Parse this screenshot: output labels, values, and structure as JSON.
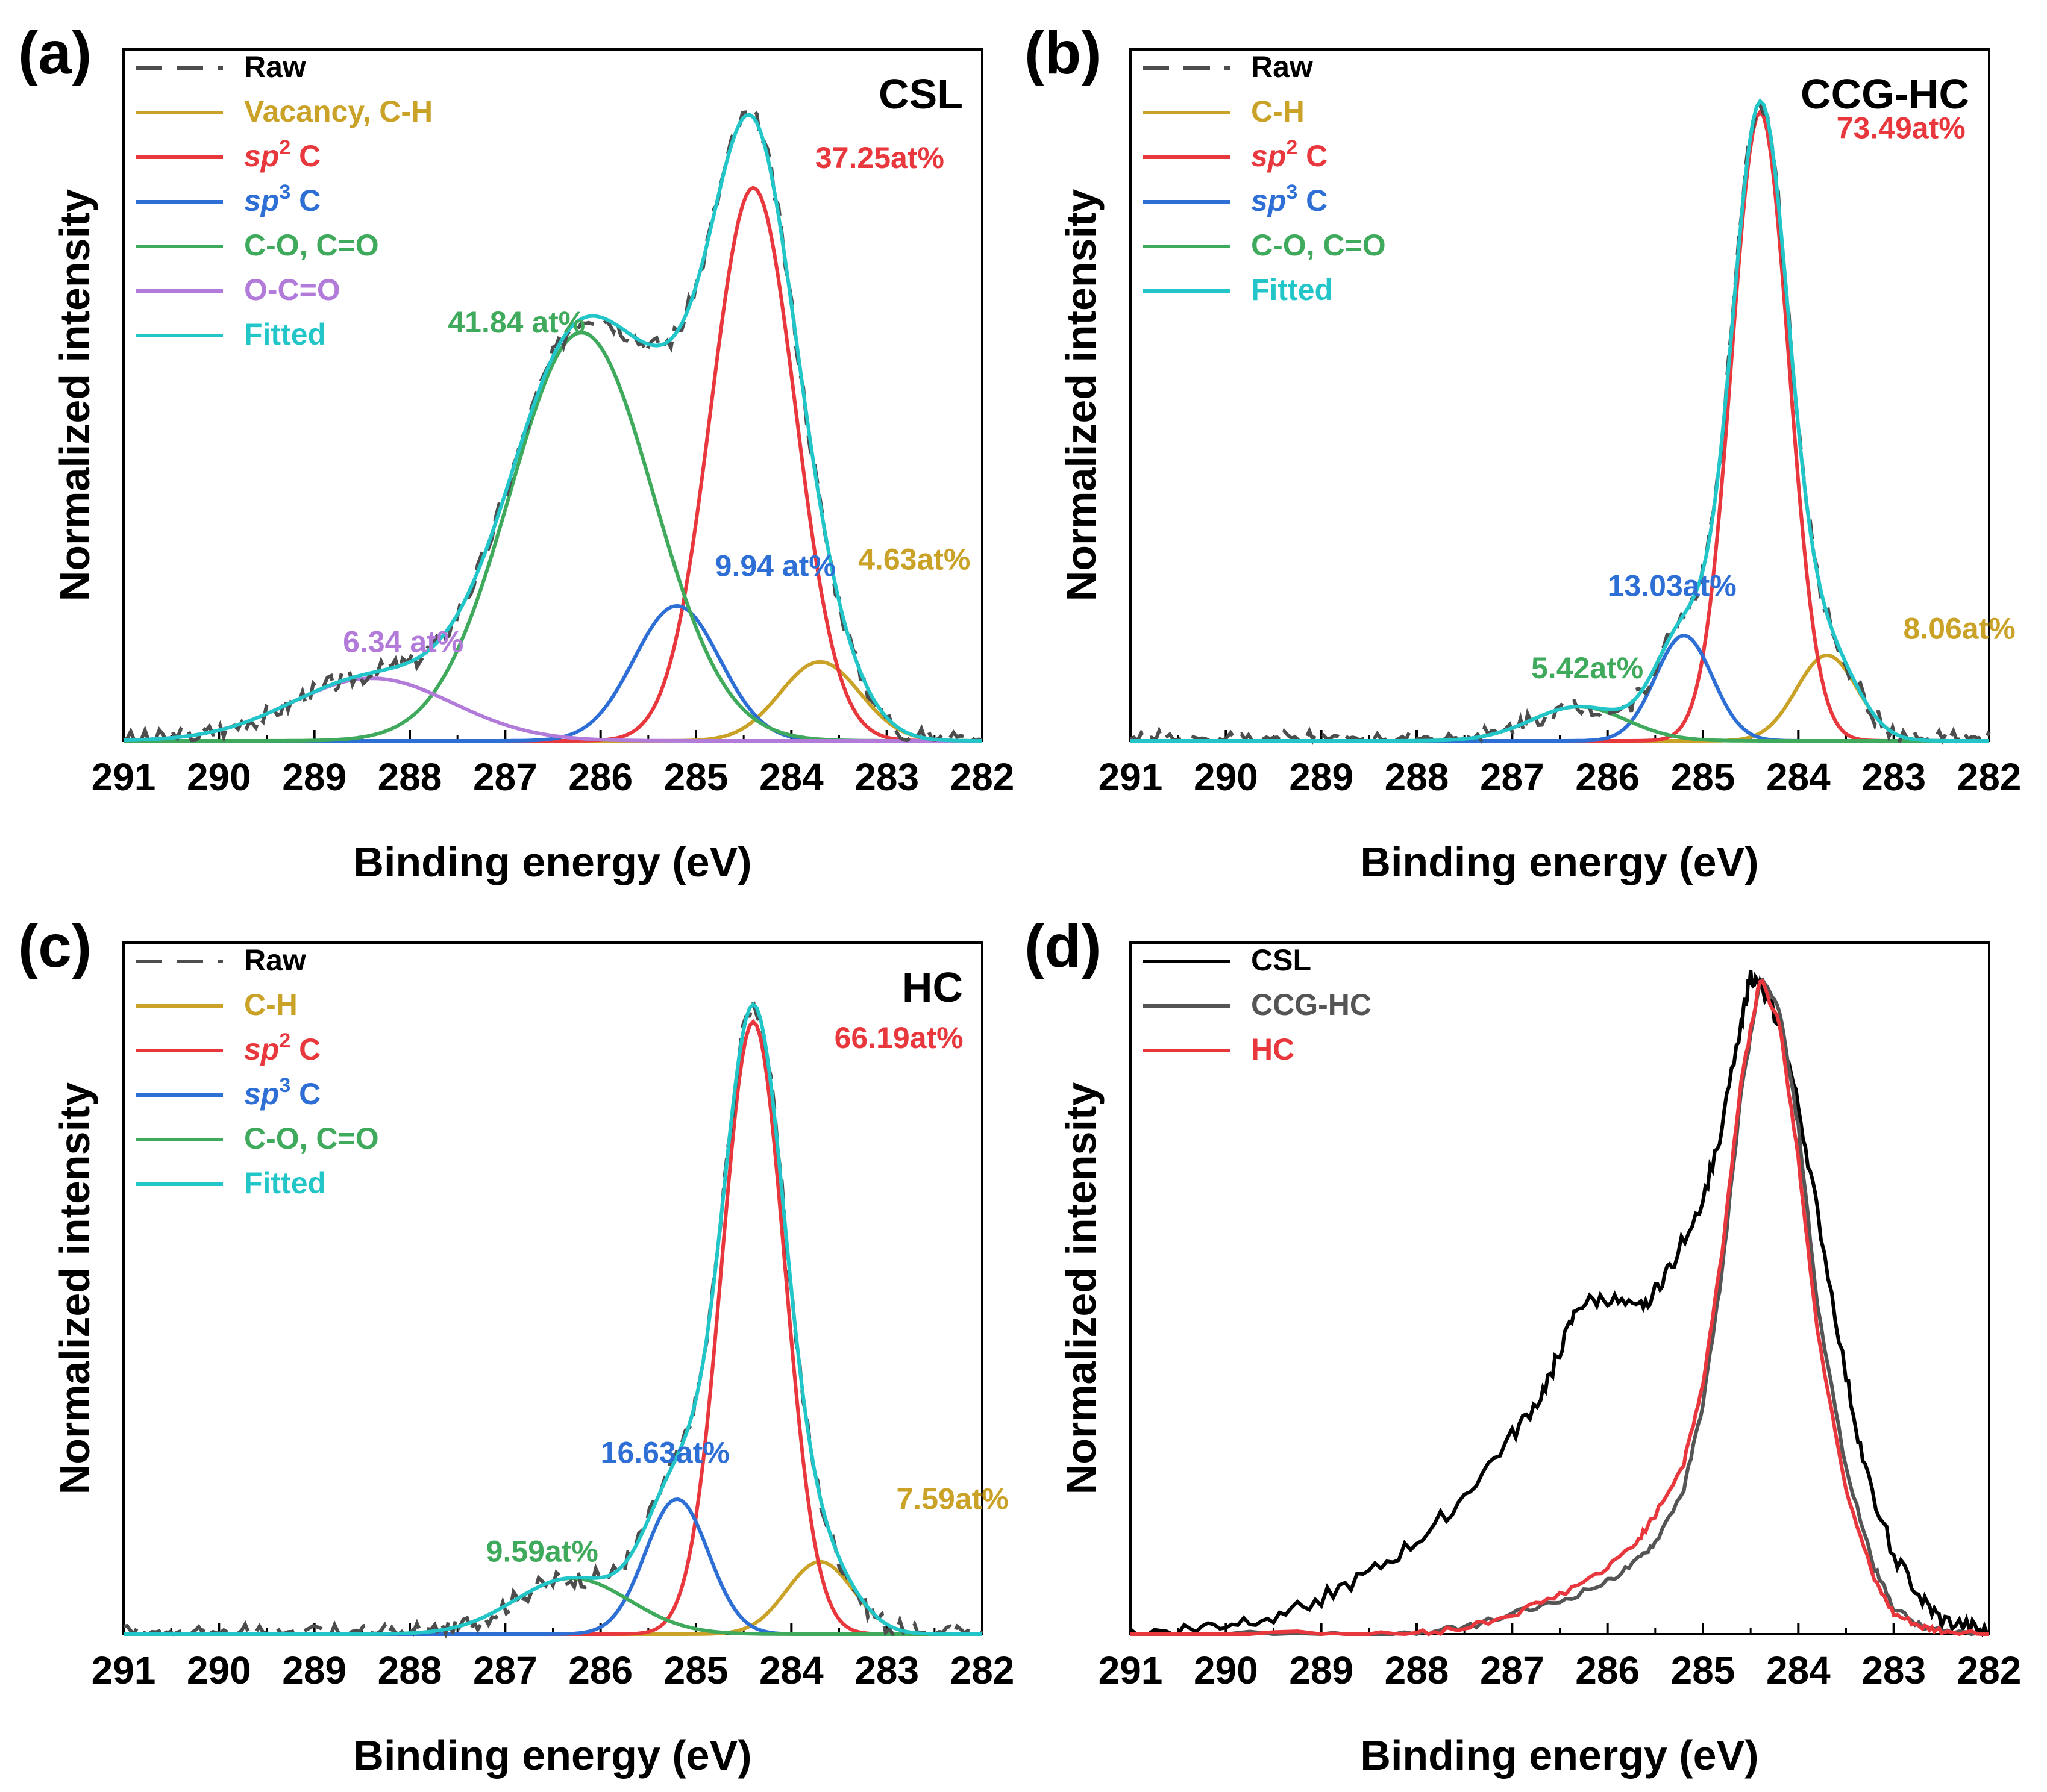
{
  "chart_data": [
    {
      "panel": "(a)",
      "title": "CSL",
      "type": "line",
      "xlabel": "Binding energy (eV)",
      "ylabel": "Normalized intensity",
      "xlim": [
        291,
        282
      ],
      "x_ticks": [
        "291",
        "290",
        "289",
        "288",
        "287",
        "286",
        "285",
        "284",
        "283",
        "282"
      ],
      "ylim": [
        0,
        1.05
      ],
      "legend": [
        {
          "label": "Raw",
          "color": "#4d4d4d",
          "dashed": true
        },
        {
          "label": "Vacancy, C-H",
          "color": "#c9a227"
        },
        {
          "label": "sp2 C",
          "prefix": "sp",
          "sup": "2",
          "suffix": " C",
          "color": "#e8383d"
        },
        {
          "label": "sp3 C",
          "prefix": "sp",
          "sup": "3",
          "suffix": " C",
          "color": "#2e6fd6"
        },
        {
          "label": "C-O, C=O",
          "color": "#3fa95c"
        },
        {
          "label": "O-C=O",
          "color": "#b27bd9"
        },
        {
          "label": "Fitted",
          "color": "#22c6c9"
        }
      ],
      "components": [
        {
          "name": "Vacancy, C-H",
          "center": 283.7,
          "height": 0.12,
          "sigma": 0.42,
          "color": "#c9a227"
        },
        {
          "name": "sp2 C",
          "center": 284.4,
          "height": 0.84,
          "sigma": 0.44,
          "color": "#e8383d"
        },
        {
          "name": "sp3 C",
          "center": 285.2,
          "height": 0.205,
          "sigma": 0.45,
          "color": "#2e6fd6"
        },
        {
          "name": "C-O, C=O",
          "center": 286.2,
          "height": 0.62,
          "sigma": 0.75,
          "color": "#3fa95c"
        },
        {
          "name": "O-C=O",
          "center": 288.4,
          "height": 0.095,
          "sigma": 0.85,
          "color": "#b27bd9"
        }
      ],
      "annotations": [
        {
          "text": "37.25at%",
          "color": "#e8383d",
          "x": 283.75,
          "y": 0.87
        },
        {
          "text": "41.84 at%",
          "color": "#3fa95c",
          "x": 287.6,
          "y": 0.62
        },
        {
          "text": "9.94 at%",
          "color": "#2e6fd6",
          "x": 284.8,
          "y": 0.25
        },
        {
          "text": "4.63at%",
          "color": "#c9a227",
          "x": 283.3,
          "y": 0.26
        },
        {
          "text": "6.34 at%",
          "color": "#b27bd9",
          "x": 288.7,
          "y": 0.135
        }
      ]
    },
    {
      "panel": "(b)",
      "title": "CCG-HC",
      "type": "line",
      "xlabel": "Binding energy (eV)",
      "ylabel": "Normalized intensity",
      "xlim": [
        291,
        282
      ],
      "x_ticks": [
        "291",
        "290",
        "289",
        "288",
        "287",
        "286",
        "285",
        "284",
        "283",
        "282"
      ],
      "ylim": [
        0,
        1.05
      ],
      "legend": [
        {
          "label": "Raw",
          "color": "#4d4d4d",
          "dashed": true
        },
        {
          "label": "C-H",
          "color": "#c9a227"
        },
        {
          "label": "sp2 C",
          "prefix": "sp",
          "sup": "2",
          "suffix": " C",
          "color": "#e8383d"
        },
        {
          "label": "sp3 C",
          "prefix": "sp",
          "sup": "3",
          "suffix": " C",
          "color": "#2e6fd6"
        },
        {
          "label": "C-O, C=O",
          "color": "#3fa95c"
        },
        {
          "label": "Fitted",
          "color": "#22c6c9"
        }
      ],
      "components": [
        {
          "name": "C-H",
          "center": 283.7,
          "height": 0.13,
          "sigma": 0.32,
          "color": "#c9a227"
        },
        {
          "name": "sp2 C",
          "center": 284.4,
          "height": 0.955,
          "sigma": 0.3,
          "color": "#e8383d"
        },
        {
          "name": "sp3 C",
          "center": 285.2,
          "height": 0.16,
          "sigma": 0.3,
          "color": "#2e6fd6"
        },
        {
          "name": "C-O, C=O",
          "center": 286.3,
          "height": 0.052,
          "sigma": 0.5,
          "color": "#3fa95c"
        }
      ],
      "annotations": [
        {
          "text": "73.49at%",
          "color": "#e8383d",
          "x": 283.6,
          "y": 0.915
        },
        {
          "text": "13.03at%",
          "color": "#2e6fd6",
          "x": 286.0,
          "y": 0.22
        },
        {
          "text": "5.42at%",
          "color": "#3fa95c",
          "x": 286.8,
          "y": 0.095
        },
        {
          "text": "8.06at%",
          "color": "#c9a227",
          "x": 282.9,
          "y": 0.155
        }
      ]
    },
    {
      "panel": "(c)",
      "title": "HC",
      "type": "line",
      "xlabel": "Binding energy (eV)",
      "ylabel": "Normalized intensity",
      "xlim": [
        291,
        282
      ],
      "x_ticks": [
        "291",
        "290",
        "289",
        "288",
        "287",
        "286",
        "285",
        "284",
        "283",
        "282"
      ],
      "ylim": [
        0,
        1.05
      ],
      "legend": [
        {
          "label": "Raw",
          "color": "#4d4d4d",
          "dashed": true
        },
        {
          "label": "C-H",
          "color": "#c9a227"
        },
        {
          "label": "sp2 C",
          "prefix": "sp",
          "sup": "2",
          "suffix": " C",
          "color": "#e8383d"
        },
        {
          "label": "sp3 C",
          "prefix": "sp",
          "sup": "3",
          "suffix": " C",
          "color": "#2e6fd6"
        },
        {
          "label": "C-O, C=O",
          "color": "#3fa95c"
        },
        {
          "label": "Fitted",
          "color": "#22c6c9"
        }
      ],
      "components": [
        {
          "name": "C-H",
          "center": 283.7,
          "height": 0.11,
          "sigma": 0.35,
          "color": "#c9a227"
        },
        {
          "name": "sp2 C",
          "center": 284.4,
          "height": 0.93,
          "sigma": 0.33,
          "color": "#e8383d"
        },
        {
          "name": "sp3 C",
          "center": 285.2,
          "height": 0.205,
          "sigma": 0.33,
          "color": "#2e6fd6"
        },
        {
          "name": "C-O, C=O",
          "center": 286.3,
          "height": 0.085,
          "sigma": 0.6,
          "color": "#3fa95c"
        }
      ],
      "annotations": [
        {
          "text": "66.19at%",
          "color": "#e8383d",
          "x": 283.55,
          "y": 0.89
        },
        {
          "text": "16.63at%",
          "color": "#2e6fd6",
          "x": 286.0,
          "y": 0.26
        },
        {
          "text": "9.59at%",
          "color": "#3fa95c",
          "x": 287.2,
          "y": 0.11
        },
        {
          "text": "7.59at%",
          "color": "#c9a227",
          "x": 282.9,
          "y": 0.19
        }
      ]
    },
    {
      "panel": "(d)",
      "title": "",
      "type": "line",
      "xlabel": "Binding energy (eV)",
      "ylabel": "Normalized intensity",
      "xlim": [
        291,
        282
      ],
      "x_ticks": [
        "291",
        "290",
        "289",
        "288",
        "287",
        "286",
        "285",
        "284",
        "283",
        "282"
      ],
      "ylim": [
        0,
        1.05
      ],
      "legend": [
        {
          "label": "CSL",
          "color": "#000000"
        },
        {
          "label": "CCG-HC",
          "color": "#555555"
        },
        {
          "label": "HC",
          "color": "#e8383d"
        }
      ],
      "series": [
        {
          "name": "CSL",
          "color": "#000000",
          "x": [
            291.0,
            290.5,
            290.0,
            289.5,
            289.0,
            288.5,
            288.0,
            287.5,
            287.0,
            286.7,
            286.5,
            286.3,
            286.0,
            285.7,
            285.5,
            285.3,
            285.0,
            284.8,
            284.6,
            284.5,
            284.4,
            284.2,
            284.0,
            283.8,
            283.5,
            283.3,
            283.0,
            282.7,
            282.5,
            282.2,
            282.0
          ],
          "y": [
            0.0,
            0.005,
            0.015,
            0.03,
            0.055,
            0.09,
            0.14,
            0.21,
            0.3,
            0.36,
            0.43,
            0.5,
            0.51,
            0.49,
            0.52,
            0.57,
            0.66,
            0.77,
            0.93,
            1.0,
            0.98,
            0.93,
            0.8,
            0.64,
            0.39,
            0.25,
            0.12,
            0.05,
            0.02,
            0.01,
            0.0
          ]
        },
        {
          "name": "CCG-HC",
          "color": "#555555",
          "x": [
            291.0,
            289.0,
            288.0,
            287.5,
            287.0,
            286.5,
            286.0,
            285.7,
            285.5,
            285.2,
            285.0,
            284.8,
            284.6,
            284.4,
            284.2,
            284.0,
            283.8,
            283.5,
            283.2,
            283.0,
            282.7,
            282.5,
            282.0
          ],
          "y": [
            0.0,
            0.0,
            0.0,
            0.01,
            0.03,
            0.05,
            0.08,
            0.11,
            0.14,
            0.22,
            0.35,
            0.55,
            0.82,
            0.995,
            0.95,
            0.77,
            0.5,
            0.25,
            0.1,
            0.04,
            0.01,
            0.005,
            0.0
          ]
        },
        {
          "name": "HC",
          "color": "#e8383d",
          "x": [
            291.0,
            289.0,
            288.0,
            287.5,
            287.0,
            286.5,
            286.0,
            285.7,
            285.5,
            285.2,
            285.0,
            284.8,
            284.6,
            284.4,
            284.2,
            284.0,
            283.8,
            283.5,
            283.2,
            283.0,
            282.7,
            282.5,
            282.0
          ],
          "y": [
            0.0,
            0.0,
            0.0,
            0.01,
            0.03,
            0.06,
            0.1,
            0.14,
            0.18,
            0.26,
            0.38,
            0.58,
            0.84,
            0.995,
            0.93,
            0.72,
            0.46,
            0.22,
            0.08,
            0.03,
            0.01,
            0.005,
            0.0
          ]
        }
      ]
    }
  ]
}
